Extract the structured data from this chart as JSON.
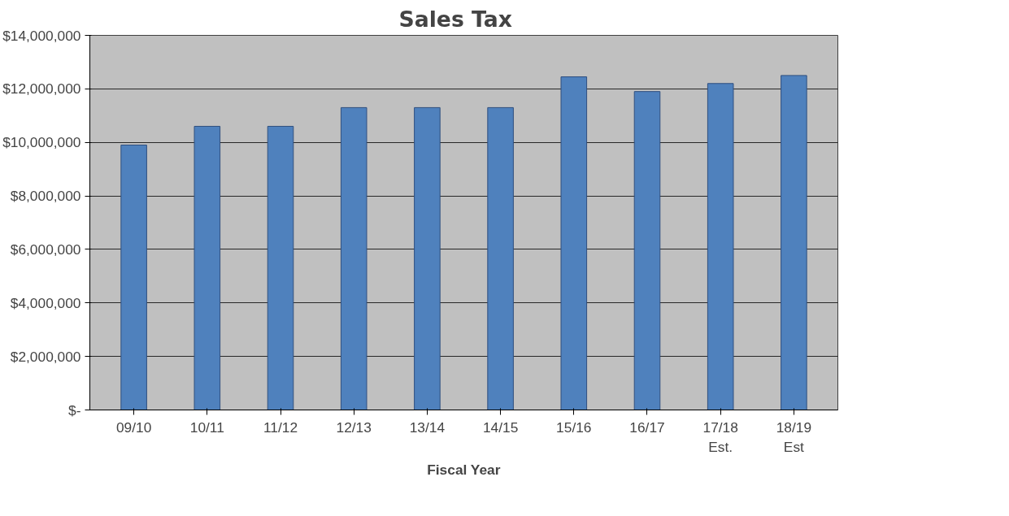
{
  "chart_data": {
    "type": "bar",
    "title": "Sales Tax",
    "xlabel": "Fiscal Year",
    "categories": [
      "09/10",
      "10/11",
      "11/12",
      "12/13",
      "13/14",
      "14/15",
      "15/16",
      "16/17",
      "17/18\nEst.",
      "18/19\nEst"
    ],
    "values": [
      9900000,
      10600000,
      10600000,
      11300000,
      11300000,
      11300000,
      12450000,
      11900000,
      12200000,
      12500000
    ],
    "color": "#4f81bd",
    "ylim": [
      0,
      14000000
    ],
    "yticks": [
      {
        "value": 0,
        "label": "$-"
      },
      {
        "value": 2000000,
        "label": "$2,000,000"
      },
      {
        "value": 4000000,
        "label": "$4,000,000"
      },
      {
        "value": 6000000,
        "label": "$6,000,000"
      },
      {
        "value": 8000000,
        "label": "$8,000,000"
      },
      {
        "value": 10000000,
        "label": "$10,000,000"
      },
      {
        "value": 12000000,
        "label": "$12,000,000"
      },
      {
        "value": 14000000,
        "label": "$14,000,000"
      }
    ],
    "grid": "y"
  }
}
